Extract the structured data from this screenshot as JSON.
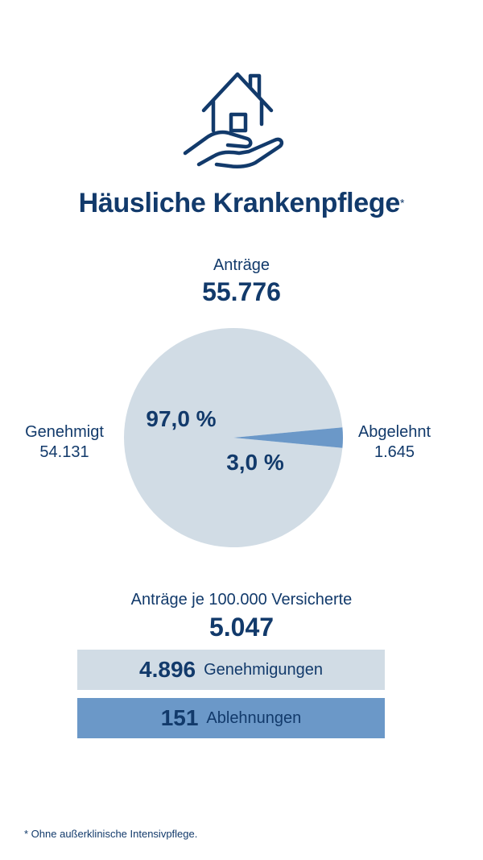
{
  "icon": "house-in-hand-icon",
  "title": "Häusliche Krankenpflege",
  "title_marker": "*",
  "antraege": {
    "label": "Anträge",
    "value": "55.776"
  },
  "legend": {
    "genehmigt": {
      "label": "Genehmigt",
      "value": "54.131"
    },
    "abgelehnt": {
      "label": "Abgelehnt",
      "value": "1.645"
    }
  },
  "per_insured": {
    "label": "Anträge je 100.000 Versicherte",
    "value": "5.047",
    "rows": [
      {
        "number": "4.896",
        "label": "Genehmigungen"
      },
      {
        "number": "151",
        "label": "Ablehnungen"
      }
    ]
  },
  "footnote": "* Ohne außerklinische Intensivpflege.",
  "colors": {
    "navy": "#123a6b",
    "light": "#d1dce5",
    "accent": "#6b98c8"
  },
  "chart_data": [
    {
      "type": "pie",
      "title": "Anträge",
      "total": 55776,
      "slices": [
        {
          "name": "Genehmigt",
          "count": 54131,
          "percent": 97.0,
          "label": "97,0 %"
        },
        {
          "name": "Abgelehnt",
          "count": 1645,
          "percent": 3.0,
          "label": "3,0 %"
        }
      ]
    },
    {
      "type": "bar",
      "title": "Anträge je 100.000 Versicherte",
      "categories": [
        "Genehmigungen",
        "Ablehnungen"
      ],
      "values": [
        4896,
        151
      ]
    }
  ]
}
